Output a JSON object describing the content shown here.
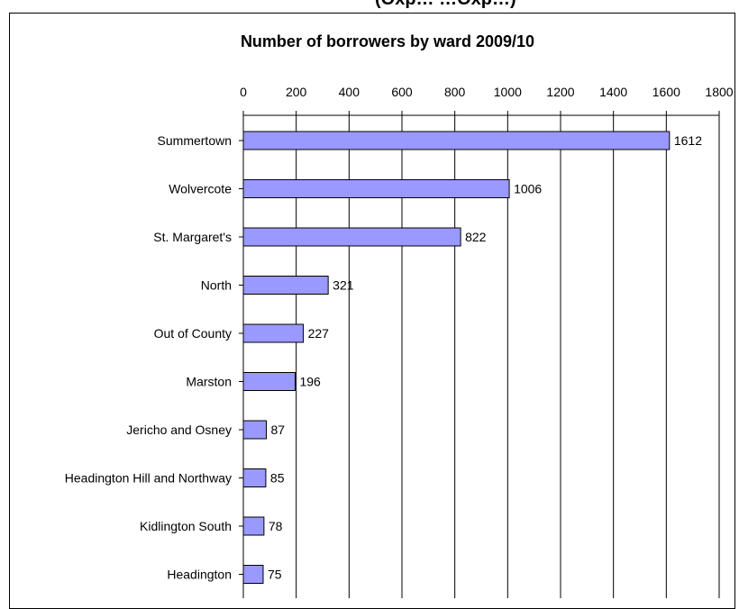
{
  "header_fragment": "(Oxp… …Oxp…)",
  "chart_data": {
    "type": "bar",
    "orientation": "horizontal",
    "title": "Number of borrowers by ward 2009/10",
    "categories": [
      "Summertown",
      "Wolvercote",
      "St. Margaret's",
      "North",
      "Out of County",
      "Marston",
      "Jericho and Osney",
      "Headington Hill and Northway",
      "Kidlington South",
      "Headington"
    ],
    "values": [
      1612,
      1006,
      822,
      321,
      227,
      196,
      87,
      85,
      78,
      75
    ],
    "xlim": [
      0,
      1800
    ],
    "xticks": [
      0,
      200,
      400,
      600,
      800,
      1000,
      1200,
      1400,
      1600,
      1800
    ],
    "xaxis_position": "top",
    "grid": "vertical",
    "data_labels": true,
    "bar_color": "#9999ff"
  }
}
